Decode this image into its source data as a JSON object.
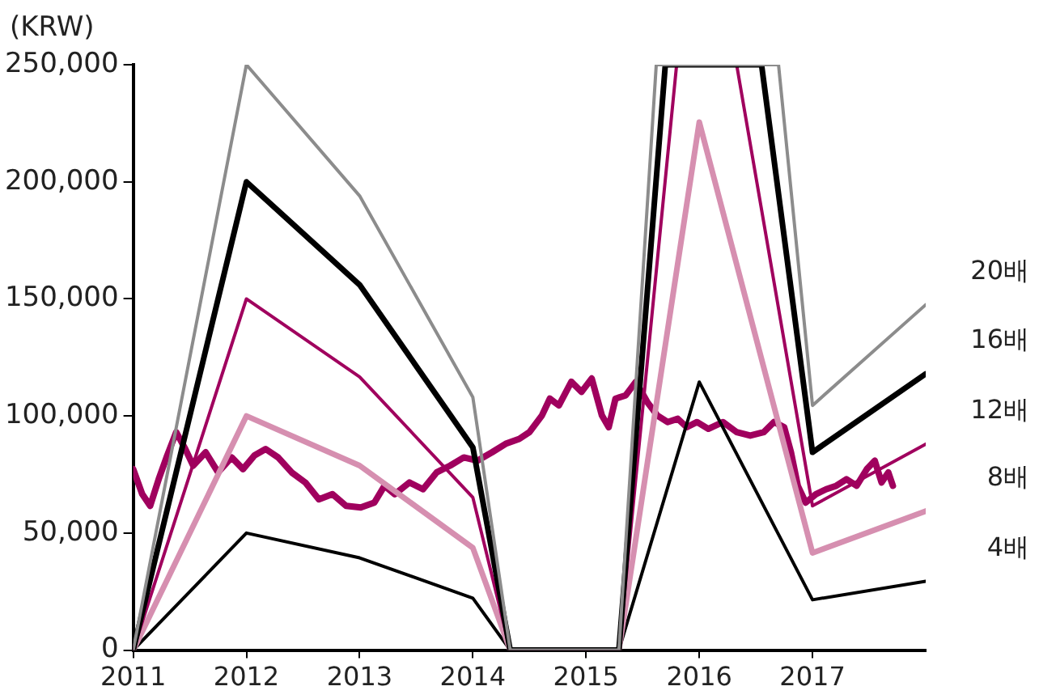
{
  "chart_data": {
    "type": "line",
    "ylabel": "(KRW)",
    "xlim": [
      2011,
      2018
    ],
    "xticks": [
      2011,
      2012,
      2013,
      2014,
      2015,
      2016,
      2017
    ],
    "ylim": [
      0,
      250000
    ],
    "yticks": [
      0,
      {
        "value": 50000,
        "label": "50,000"
      },
      {
        "value": 100000,
        "label": "100,000"
      },
      {
        "value": 150000,
        "label": "150,000"
      },
      {
        "value": 200000,
        "label": "200,000"
      },
      {
        "value": 250000,
        "label": "250,000"
      }
    ],
    "grid": false,
    "legend": false,
    "marker": "none",
    "line_style": "solid",
    "series": [
      {
        "name": "20배",
        "color": "#8c8c8c",
        "x": [
          2011,
          2012,
          2013,
          2014,
          2014.33,
          2015.29,
          2015.62,
          2016.7,
          2017,
          2018
        ],
        "values": [
          0,
          250000,
          194000,
          108000,
          0,
          0,
          250000,
          250000,
          104500,
          147500
        ]
      },
      {
        "name": "16배",
        "color": "#000000",
        "x": [
          2011,
          2012,
          2013,
          2014,
          2014.33,
          2015.29,
          2015.7,
          2016.55,
          2017,
          2018
        ],
        "values": [
          0,
          200000,
          156000,
          86600,
          0,
          0,
          250000,
          250000,
          84500,
          118000
        ]
      },
      {
        "name": "12배",
        "color": "#a0005e",
        "x": [
          2011,
          2012,
          2013,
          2014,
          2014.33,
          2015.29,
          2015.8,
          2016.33,
          2017,
          2018
        ],
        "values": [
          0,
          150000,
          116700,
          65200,
          0,
          0,
          250000,
          250000,
          61600,
          88000
        ]
      },
      {
        "name": "8배",
        "color": "#d68fb0",
        "x": [
          2011,
          2012,
          2013,
          2014,
          2014.33,
          2015.29,
          2016,
          2017,
          2018
        ],
        "values": [
          0,
          100000,
          78800,
          43700,
          0,
          0,
          225500,
          41500,
          59400
        ]
      },
      {
        "name": "4배",
        "color": "#000000",
        "x": [
          2011,
          2012,
          2013,
          2014,
          2014.33,
          2015.29,
          2016,
          2017,
          2018
        ],
        "values": [
          0,
          50000,
          39400,
          22200,
          0,
          0,
          114500,
          21500,
          29400
        ]
      },
      {
        "color": "#a0005e",
        "x": [
          2011.0,
          2011.08,
          2011.15,
          2011.23,
          2011.3,
          2011.38,
          2011.46,
          2011.53,
          2011.64,
          2011.75,
          2011.87,
          2011.97,
          2012.07,
          2012.17,
          2012.28,
          2012.4,
          2012.52,
          2012.64,
          2012.76,
          2012.88,
          2013.01,
          2013.13,
          2013.22,
          2013.31,
          2013.44,
          2013.56,
          2013.68,
          2013.8,
          2013.92,
          2014.04,
          2014.17,
          2014.29,
          2014.41,
          2014.5,
          2014.61,
          2014.68,
          2014.76,
          2014.87,
          2014.96,
          2015.05,
          2015.14,
          2015.2,
          2015.26,
          2015.35,
          2015.44,
          2015.54,
          2015.63,
          2015.72,
          2015.81,
          2015.89,
          2015.98,
          2016.08,
          2016.21,
          2016.33,
          2016.45,
          2016.57,
          2016.66,
          2016.75,
          2016.81,
          2016.87,
          2016.94,
          2017.03,
          2017.12,
          2017.21,
          2017.3,
          2017.39,
          2017.48,
          2017.55,
          2017.61,
          2017.67,
          2017.71
        ],
        "values": [
          77300,
          66600,
          61600,
          73700,
          83100,
          93100,
          85900,
          78800,
          84500,
          75900,
          82300,
          77300,
          83100,
          85900,
          82300,
          75900,
          71600,
          64400,
          66600,
          61600,
          60900,
          63000,
          70200,
          66600,
          71600,
          68700,
          75900,
          78800,
          82300,
          80900,
          84500,
          88100,
          90200,
          93100,
          100200,
          107400,
          104500,
          114600,
          110300,
          116000,
          100200,
          95200,
          107400,
          108800,
          114600,
          106000,
          100200,
          97400,
          98800,
          95200,
          97400,
          94500,
          97400,
          93100,
          91600,
          93100,
          97400,
          95200,
          84500,
          70200,
          63000,
          66600,
          68700,
          70200,
          73000,
          70200,
          77300,
          80900,
          71600,
          75900,
          70200
        ]
      }
    ]
  }
}
